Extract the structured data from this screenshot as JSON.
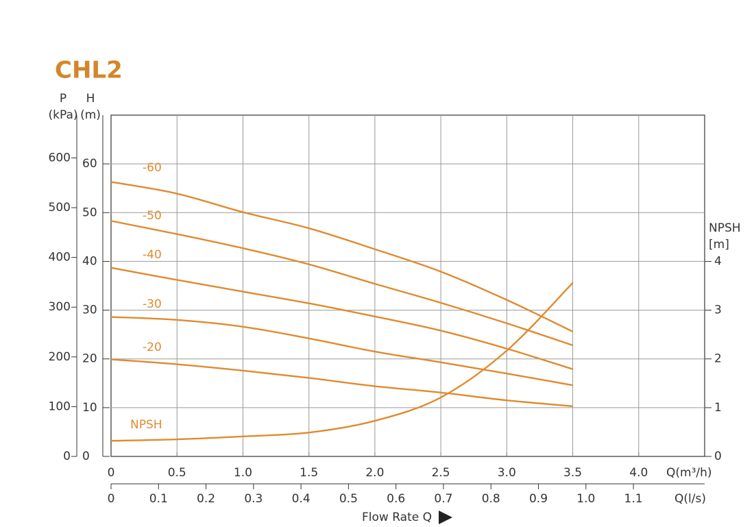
{
  "chart_data": {
    "type": "line",
    "title": "CHL2",
    "p_label": "P",
    "p_unit": "(kPa)",
    "y_label": "H",
    "y_unit": "(m)",
    "y2_label": "NPSH",
    "y2_unit": "[m]",
    "x_label": "Q(m³/h)",
    "x2_label": "Q(l/s)",
    "x_caption": "Flow Rate Q",
    "x": [
      0,
      0.5,
      1.0,
      1.5,
      2.0,
      2.5,
      3.0,
      3.5
    ],
    "xlim": [
      0,
      4.5
    ],
    "xticks": [
      0,
      0.5,
      {
        "value": 1,
        "label": "1.0"
      },
      1.5,
      {
        "value": 2,
        "label": "2.0"
      },
      2.5,
      {
        "value": 3,
        "label": "3.0"
      },
      3.5,
      {
        "value": 4,
        "label": "4.0"
      }
    ],
    "x2lim": [
      0,
      1.25
    ],
    "x2ticks": [
      0,
      0.1,
      0.2,
      0.3,
      0.4,
      0.5,
      0.6,
      0.7,
      0.8,
      0.9,
      {
        "value": 1,
        "label": "1.0"
      },
      1.1
    ],
    "ylim": [
      0,
      70
    ],
    "yticks": [
      0,
      10,
      20,
      30,
      40,
      50,
      60
    ],
    "plim": [
      0,
      686
    ],
    "pticks": [
      0,
      100,
      200,
      300,
      400,
      500,
      600
    ],
    "y2lim": [
      0,
      7
    ],
    "y2ticks": [
      0,
      1,
      2,
      3,
      4
    ],
    "grid": true,
    "series": [
      {
        "name": "-60",
        "color": "#e08a2e",
        "values": [
          56.3,
          53.9,
          50.1,
          46.8,
          42.5,
          37.9,
          32.1,
          25.6
        ]
      },
      {
        "name": "-50",
        "color": "#e08a2e",
        "values": [
          48.3,
          45.6,
          42.7,
          39.4,
          35.4,
          31.5,
          27.3,
          22.8
        ]
      },
      {
        "name": "-40",
        "color": "#e08a2e",
        "values": [
          38.7,
          36.2,
          33.8,
          31.4,
          28.7,
          25.8,
          22.1,
          17.9
        ]
      },
      {
        "name": "-30",
        "color": "#e08a2e",
        "values": [
          28.6,
          28.0,
          26.6,
          24.2,
          21.5,
          19.3,
          17.0,
          14.6
        ]
      },
      {
        "name": "-20",
        "color": "#e08a2e",
        "values": [
          19.9,
          18.9,
          17.6,
          16.1,
          14.4,
          13.1,
          11.5,
          10.3
        ]
      },
      {
        "name": "NPSH",
        "color": "#e08a2e",
        "axis": "y2",
        "values": [
          0.32,
          0.35,
          0.41,
          0.49,
          0.73,
          1.21,
          2.17,
          3.56
        ]
      }
    ]
  }
}
